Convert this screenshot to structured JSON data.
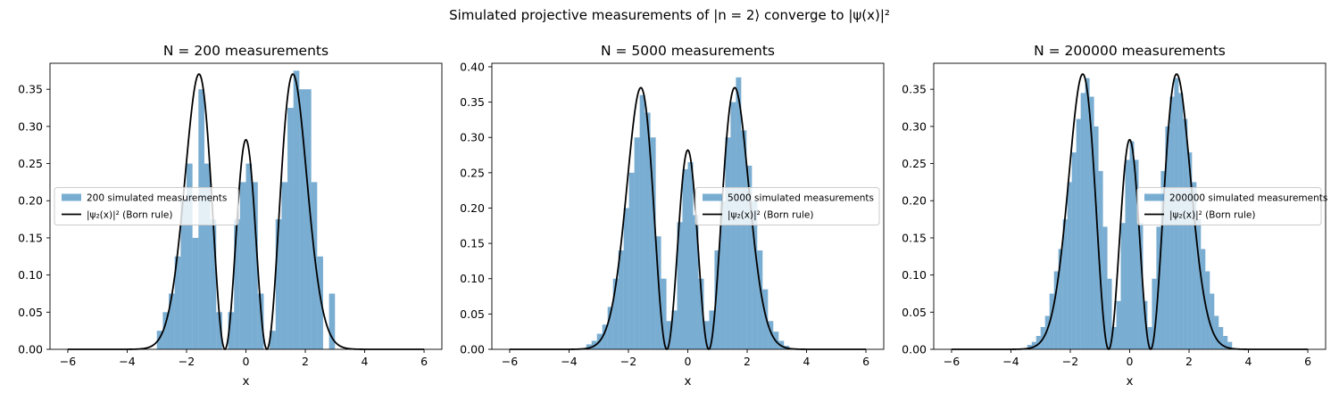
{
  "figure": {
    "title": "Simulated projective measurements of |n = 2⟩ converge to |ψ(x)|²"
  },
  "chart_data": [
    {
      "type": "bar",
      "title": "N = 200 measurements",
      "xlabel": "x",
      "ylabel": "",
      "xlim": [
        -6.6,
        6.6
      ],
      "ylim": [
        0,
        0.385
      ],
      "xticks": [
        -6,
        -4,
        -2,
        0,
        2,
        4,
        6
      ],
      "yticks": [
        0.0,
        0.05,
        0.1,
        0.15,
        0.2,
        0.25,
        0.3,
        0.35
      ],
      "ytick_labels": [
        "0.00",
        "0.05",
        "0.10",
        "0.15",
        "0.20",
        "0.25",
        "0.30",
        "0.35"
      ],
      "grid": false,
      "legend_position": "center-left",
      "histogram": {
        "name": "200 simulated measurements",
        "color": "#1f77b4",
        "bin_width": 0.2,
        "bins": [
          [
            -3.0,
            0.025
          ],
          [
            -2.8,
            0.05
          ],
          [
            -2.6,
            0.075
          ],
          [
            -2.4,
            0.125
          ],
          [
            -2.2,
            0.2
          ],
          [
            -2.0,
            0.25
          ],
          [
            -1.8,
            0.15
          ],
          [
            -1.6,
            0.35
          ],
          [
            -1.4,
            0.25
          ],
          [
            -1.2,
            0.175
          ],
          [
            -1.0,
            0.05
          ],
          [
            -0.6,
            0.05
          ],
          [
            -0.4,
            0.175
          ],
          [
            -0.2,
            0.225
          ],
          [
            0.0,
            0.25
          ],
          [
            0.2,
            0.225
          ],
          [
            0.4,
            0.075
          ],
          [
            0.8,
            0.025
          ],
          [
            1.0,
            0.175
          ],
          [
            1.2,
            0.225
          ],
          [
            1.4,
            0.325
          ],
          [
            1.6,
            0.375
          ],
          [
            1.8,
            0.35
          ],
          [
            2.0,
            0.35
          ],
          [
            2.2,
            0.225
          ],
          [
            2.4,
            0.125
          ],
          [
            2.8,
            0.075
          ]
        ]
      },
      "curve": {
        "name": "|ψ₂(x)|² (Born rule)",
        "color": "#000000",
        "function": "psi2_squared",
        "x_range": [
          -6,
          6
        ]
      }
    },
    {
      "type": "bar",
      "title": "N = 5000 measurements",
      "xlabel": "x",
      "ylabel": "",
      "xlim": [
        -6.6,
        6.6
      ],
      "ylim": [
        0,
        0.405
      ],
      "xticks": [
        -6,
        -4,
        -2,
        0,
        2,
        4,
        6
      ],
      "yticks": [
        0.0,
        0.05,
        0.1,
        0.15,
        0.2,
        0.25,
        0.3,
        0.35,
        0.4
      ],
      "ytick_labels": [
        "0.00",
        "0.05",
        "0.10",
        "0.15",
        "0.20",
        "0.25",
        "0.30",
        "0.35",
        "0.40"
      ],
      "grid": false,
      "legend_position": "center-right",
      "histogram": {
        "name": "5000 simulated measurements",
        "color": "#1f77b4",
        "bin_width": 0.18,
        "bins": [
          [
            -3.42,
            0.007
          ],
          [
            -3.24,
            0.012
          ],
          [
            -3.06,
            0.022
          ],
          [
            -2.88,
            0.035
          ],
          [
            -2.7,
            0.06
          ],
          [
            -2.52,
            0.1
          ],
          [
            -2.34,
            0.14
          ],
          [
            -2.16,
            0.2
          ],
          [
            -1.98,
            0.25
          ],
          [
            -1.8,
            0.3
          ],
          [
            -1.62,
            0.36
          ],
          [
            -1.44,
            0.335
          ],
          [
            -1.26,
            0.3
          ],
          [
            -1.08,
            0.16
          ],
          [
            -0.9,
            0.1
          ],
          [
            -0.72,
            0.04
          ],
          [
            -0.54,
            0.055
          ],
          [
            -0.36,
            0.18
          ],
          [
            -0.18,
            0.255
          ],
          [
            0.0,
            0.265
          ],
          [
            0.18,
            0.19
          ],
          [
            0.36,
            0.1
          ],
          [
            0.54,
            0.04
          ],
          [
            0.72,
            0.055
          ],
          [
            0.9,
            0.14
          ],
          [
            1.08,
            0.21
          ],
          [
            1.26,
            0.3
          ],
          [
            1.44,
            0.35
          ],
          [
            1.62,
            0.385
          ],
          [
            1.8,
            0.31
          ],
          [
            1.98,
            0.26
          ],
          [
            2.16,
            0.21
          ],
          [
            2.34,
            0.14
          ],
          [
            2.52,
            0.085
          ],
          [
            2.7,
            0.04
          ],
          [
            2.88,
            0.025
          ],
          [
            3.06,
            0.012
          ],
          [
            3.24,
            0.005
          ]
        ]
      },
      "curve": {
        "name": "|ψ₂(x)|² (Born rule)",
        "color": "#000000",
        "function": "psi2_squared",
        "x_range": [
          -6,
          6
        ]
      }
    },
    {
      "type": "bar",
      "title": "N = 200000 measurements",
      "xlabel": "x",
      "ylabel": "",
      "xlim": [
        -6.6,
        6.6
      ],
      "ylim": [
        0,
        0.385
      ],
      "xticks": [
        -6,
        -4,
        -2,
        0,
        2,
        4,
        6
      ],
      "yticks": [
        0.0,
        0.05,
        0.1,
        0.15,
        0.2,
        0.25,
        0.3,
        0.35
      ],
      "ytick_labels": [
        "0.00",
        "0.05",
        "0.10",
        "0.15",
        "0.20",
        "0.25",
        "0.30",
        "0.35"
      ],
      "grid": false,
      "legend_position": "center-right",
      "histogram": {
        "name": "200000 simulated measurements",
        "color": "#1f77b4",
        "bin_width": 0.15,
        "bins": [
          [
            -3.45,
            0.006
          ],
          [
            -3.3,
            0.01
          ],
          [
            -3.15,
            0.018
          ],
          [
            -3.0,
            0.03
          ],
          [
            -2.85,
            0.045
          ],
          [
            -2.7,
            0.075
          ],
          [
            -2.55,
            0.105
          ],
          [
            -2.4,
            0.135
          ],
          [
            -2.25,
            0.175
          ],
          [
            -2.1,
            0.225
          ],
          [
            -1.95,
            0.265
          ],
          [
            -1.8,
            0.31
          ],
          [
            -1.65,
            0.345
          ],
          [
            -1.5,
            0.365
          ],
          [
            -1.35,
            0.34
          ],
          [
            -1.2,
            0.3
          ],
          [
            -1.05,
            0.24
          ],
          [
            -0.9,
            0.165
          ],
          [
            -0.75,
            0.095
          ],
          [
            -0.6,
            0.03
          ],
          [
            -0.45,
            0.065
          ],
          [
            -0.3,
            0.17
          ],
          [
            -0.15,
            0.255
          ],
          [
            0.0,
            0.28
          ],
          [
            0.15,
            0.255
          ],
          [
            0.3,
            0.17
          ],
          [
            0.45,
            0.065
          ],
          [
            0.6,
            0.03
          ],
          [
            0.75,
            0.095
          ],
          [
            0.9,
            0.165
          ],
          [
            1.05,
            0.24
          ],
          [
            1.2,
            0.3
          ],
          [
            1.35,
            0.34
          ],
          [
            1.5,
            0.365
          ],
          [
            1.65,
            0.345
          ],
          [
            1.8,
            0.31
          ],
          [
            1.95,
            0.265
          ],
          [
            2.1,
            0.225
          ],
          [
            2.25,
            0.175
          ],
          [
            2.4,
            0.135
          ],
          [
            2.55,
            0.105
          ],
          [
            2.7,
            0.075
          ],
          [
            2.85,
            0.045
          ],
          [
            3.0,
            0.03
          ],
          [
            3.15,
            0.018
          ],
          [
            3.3,
            0.01
          ]
        ]
      },
      "curve": {
        "name": "|ψ₂(x)|² (Born rule)",
        "color": "#000000",
        "function": "psi2_squared",
        "x_range": [
          -6,
          6
        ]
      }
    }
  ]
}
